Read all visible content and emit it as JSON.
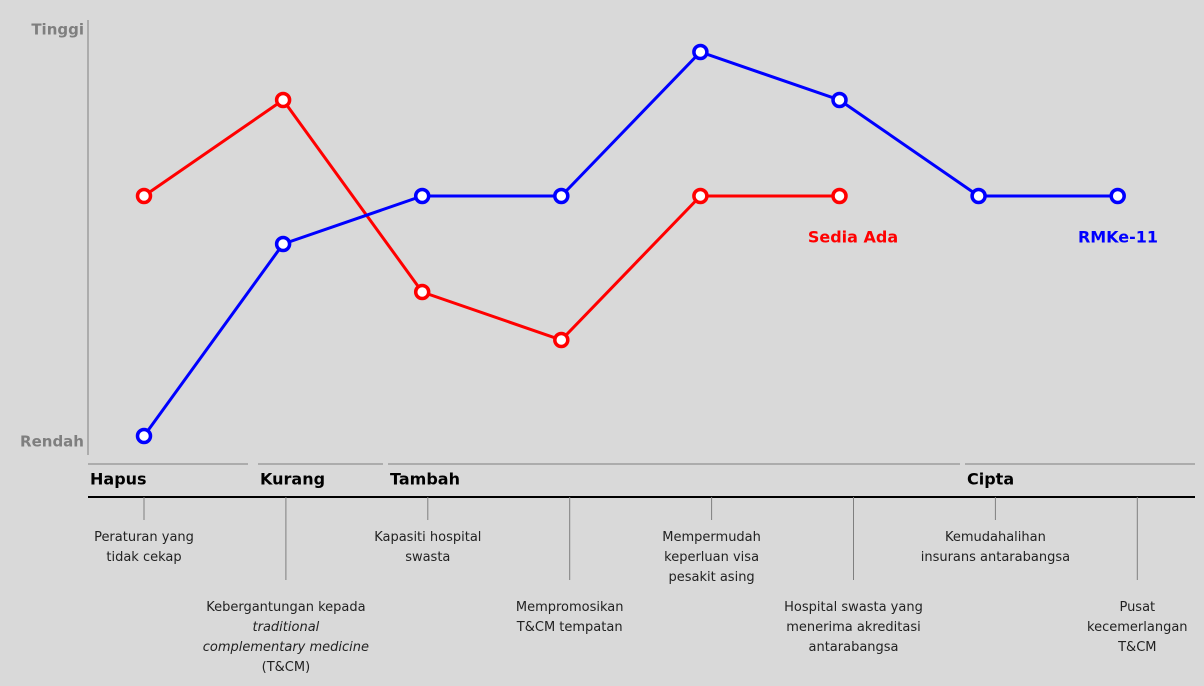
{
  "chart_data": {
    "type": "line",
    "categories": [
      "Peraturan yang\ntidak cekap",
      "Kebergantungan kepada\ntraditional\ncomplementary medicine\n(T&CM)",
      "Kapasiti hospital\nswasta",
      "Mempromosikan\nT&CM tempatan",
      "Mempermudah\nkeperluan visa\npesakit asing",
      "Hospital swasta yang\nmenerima akreditasi\nantarabangsa",
      "Kemudahalihan\ninsurans antarabangsa",
      "Pusat\nkecemerlangan\nT&CM"
    ],
    "groups": [
      "Hapus",
      "Kurang",
      "Tambah",
      "Cipta"
    ],
    "series": [
      {
        "name": "Sedia Ada",
        "color": "#ff0000",
        "values": [
          5,
          7,
          3,
          2,
          5,
          5,
          null,
          null
        ]
      },
      {
        "name": "RMKe-11",
        "color": "#0000ff",
        "values": [
          0,
          4,
          5,
          5,
          8,
          7,
          5,
          5
        ]
      }
    ],
    "ylim": [
      0,
      8.5
    ],
    "yticks": [
      {
        "value": 0,
        "label": "Rendah"
      },
      {
        "value": 8.5,
        "label": "Tinggi"
      }
    ]
  }
}
